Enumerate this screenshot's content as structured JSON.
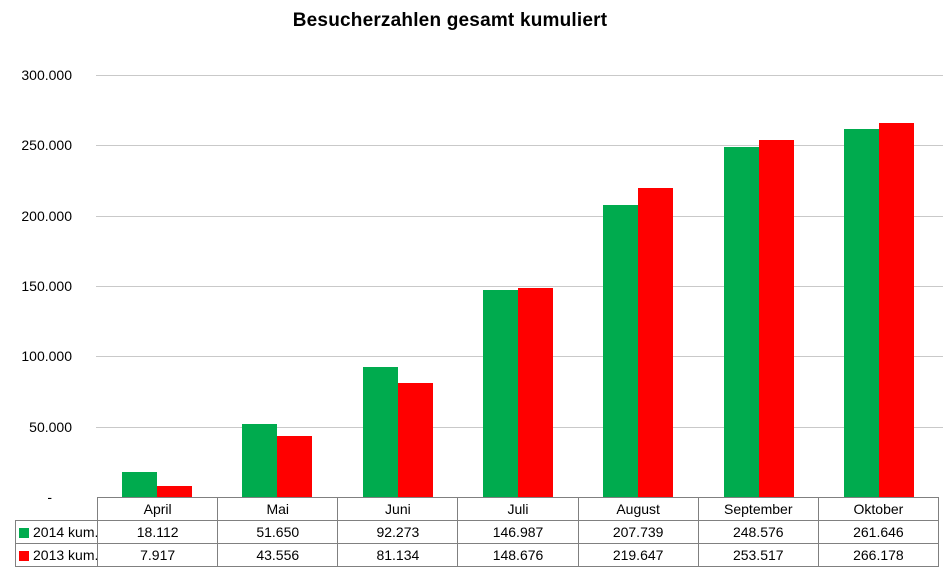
{
  "chart_data": {
    "type": "bar",
    "title": "Besucherzahlen gesamt kumuliert",
    "xlabel": "",
    "ylabel": "",
    "ylim": [
      0,
      300000
    ],
    "grid": true,
    "legend_position": "table-left",
    "categories": [
      "April",
      "Mai",
      "Juni",
      "Juli",
      "August",
      "September",
      "Oktober"
    ],
    "series": [
      {
        "name": "2014 kum.",
        "color": "#00AB4E",
        "values": [
          18112,
          51650,
          92273,
          146987,
          207739,
          248576,
          261646
        ],
        "labels": [
          "18.112",
          "51.650",
          "92.273",
          "146.987",
          "207.739",
          "248.576",
          "261.646"
        ]
      },
      {
        "name": "2013 kum.",
        "color": "#FF0000",
        "values": [
          7917,
          43556,
          81134,
          148676,
          219647,
          253517,
          266178
        ],
        "labels": [
          "7.917",
          "43.556",
          "81.134",
          "148.676",
          "219.647",
          "253.517",
          "266.178"
        ]
      }
    ],
    "y_ticks": [
      {
        "value": 300000,
        "label": "300.000"
      },
      {
        "value": 250000,
        "label": "250.000"
      },
      {
        "value": 200000,
        "label": "200.000"
      },
      {
        "value": 150000,
        "label": "150.000"
      },
      {
        "value": 100000,
        "label": "100.000"
      },
      {
        "value": 50000,
        "label": "50.000"
      },
      {
        "value": 0,
        "label": "-"
      }
    ]
  }
}
